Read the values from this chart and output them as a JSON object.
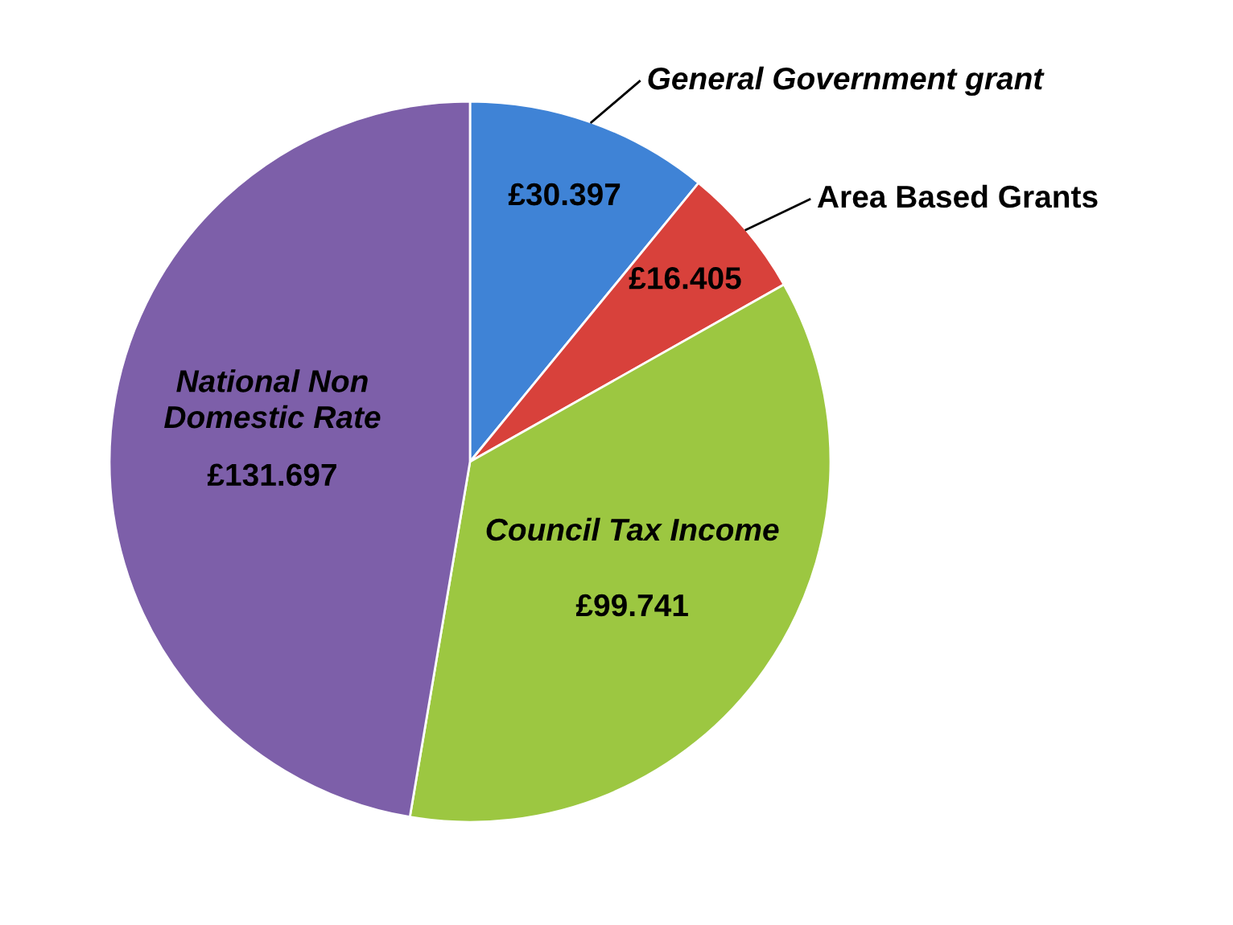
{
  "chart_data": {
    "type": "pie",
    "categories": [
      "General Government grant",
      "Area Based Grants",
      "Council Tax Income",
      "National Non Domestic Rate"
    ],
    "values": [
      30.397,
      16.405,
      99.741,
      131.697
    ],
    "value_labels": [
      "£30.397",
      "£16.405",
      "£99.741",
      "£131.697"
    ],
    "colors": [
      "#3f83d6",
      "#d8413b",
      "#9cc741",
      "#7d5fa9"
    ],
    "legend": false
  }
}
